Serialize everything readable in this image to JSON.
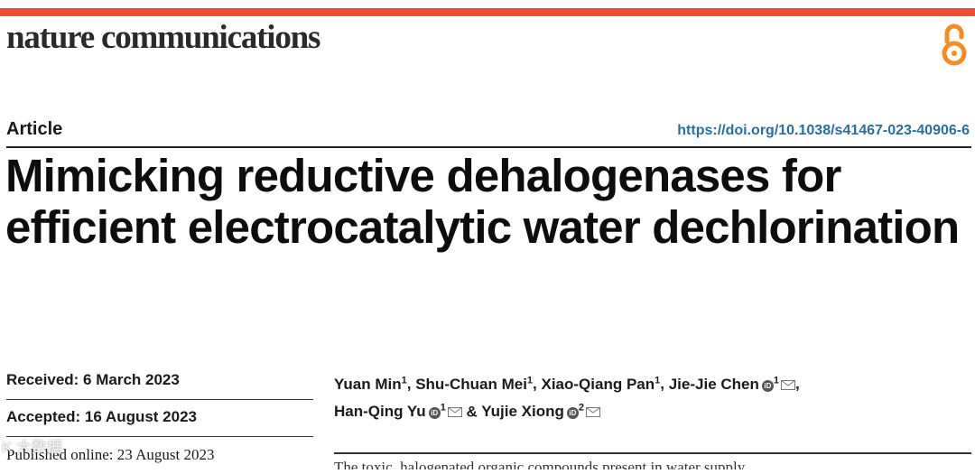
{
  "colors": {
    "accent": "#f04b35",
    "doi_link": "#2b6f96",
    "text": "#111111"
  },
  "header": {
    "journal": "nature communications",
    "open_access_icon": "open-access-icon"
  },
  "article": {
    "type": "Article",
    "doi": "https://doi.org/10.1038/s41467-023-40906-6",
    "title": "Mimicking reductive dehalogenases for efficient electrocatalytic water dechlorination"
  },
  "dates": {
    "received": "Received: 6 March 2023",
    "accepted": "Accepted: 16 August 2023",
    "published": "Published online: 23 August 2023"
  },
  "authors": [
    {
      "name": "Yuan Min",
      "aff": "1",
      "sep": ", "
    },
    {
      "name": "Shu-Chuan Mei",
      "aff": "1",
      "sep": ", "
    },
    {
      "name": "Xiao-Qiang Pan",
      "aff": "1",
      "sep": ", "
    },
    {
      "name": "Jie-Jie Chen",
      "aff": "1",
      "sep": ", "
    },
    {
      "name": "Han-Qing Yu",
      "aff": "1",
      "sep": " & "
    },
    {
      "name": "Yujie Xiong",
      "aff": "2",
      "sep": ""
    }
  ],
  "abstract_peek": "The toxic, halogenated organic compounds present in water supply",
  "watermark": "K 大数据"
}
